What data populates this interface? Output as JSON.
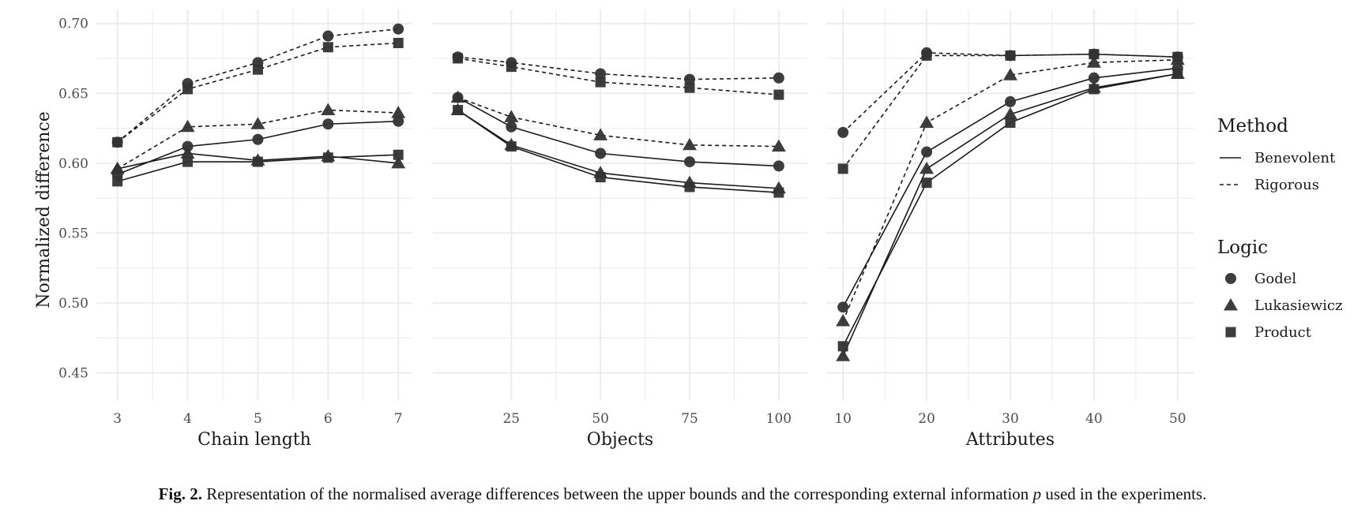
{
  "chart_data": {
    "type": "line",
    "ylabel": "Normalized difference",
    "ylim": [
      0.43,
      0.71
    ],
    "yticks": [
      0.45,
      0.5,
      0.55,
      0.6,
      0.65,
      0.7
    ],
    "ytick_labels": [
      "0.45",
      "0.50",
      "0.55",
      "0.60",
      "0.65",
      "0.70"
    ],
    "grid": true,
    "panels": [
      {
        "xlabel": "Chain length",
        "xlim": [
          2.7,
          7.2
        ],
        "xticks": [
          3,
          4,
          5,
          6,
          7
        ],
        "xtick_labels": [
          "3",
          "4",
          "5",
          "6",
          "7"
        ],
        "x": [
          3,
          4,
          5,
          6,
          7
        ],
        "series": [
          {
            "name": "Benevolent / Godel",
            "method": "Benevolent",
            "logic": "Godel",
            "values": [
              0.592,
              0.612,
              0.617,
              0.628,
              0.63
            ]
          },
          {
            "name": "Benevolent / Lukasiewicz",
            "method": "Benevolent",
            "logic": "Lukasiewicz",
            "values": [
              0.596,
              0.607,
              0.602,
              0.605,
              0.6
            ]
          },
          {
            "name": "Benevolent / Product",
            "method": "Benevolent",
            "logic": "Product",
            "values": [
              0.587,
              0.601,
              0.601,
              0.604,
              0.606
            ]
          },
          {
            "name": "Rigorous / Godel",
            "method": "Rigorous",
            "logic": "Godel",
            "values": [
              0.615,
              0.657,
              0.672,
              0.691,
              0.696
            ]
          },
          {
            "name": "Rigorous / Lukasiewicz",
            "method": "Rigorous",
            "logic": "Lukasiewicz",
            "values": [
              0.596,
              0.626,
              0.628,
              0.638,
              0.636
            ]
          },
          {
            "name": "Rigorous / Product",
            "method": "Rigorous",
            "logic": "Product",
            "values": [
              0.615,
              0.653,
              0.667,
              0.683,
              0.686
            ]
          }
        ]
      },
      {
        "xlabel": "Objects",
        "xlim": [
          3,
          108
        ],
        "xticks": [
          25,
          50,
          75,
          100
        ],
        "xtick_labels": [
          "25",
          "50",
          "75",
          "100"
        ],
        "x": [
          10,
          25,
          50,
          75,
          100
        ],
        "series": [
          {
            "name": "Benevolent / Godel",
            "method": "Benevolent",
            "logic": "Godel",
            "values": [
              0.647,
              0.626,
              0.607,
              0.601,
              0.598
            ]
          },
          {
            "name": "Benevolent / Lukasiewicz",
            "method": "Benevolent",
            "logic": "Lukasiewicz",
            "values": [
              0.638,
              0.613,
              0.593,
              0.586,
              0.582
            ]
          },
          {
            "name": "Benevolent / Product",
            "method": "Benevolent",
            "logic": "Product",
            "values": [
              0.638,
              0.612,
              0.59,
              0.583,
              0.579
            ]
          },
          {
            "name": "Rigorous / Godel",
            "method": "Rigorous",
            "logic": "Godel",
            "values": [
              0.676,
              0.672,
              0.664,
              0.66,
              0.661
            ]
          },
          {
            "name": "Rigorous / Lukasiewicz",
            "method": "Rigorous",
            "logic": "Lukasiewicz",
            "values": [
              0.647,
              0.633,
              0.62,
              0.613,
              0.612
            ]
          },
          {
            "name": "Rigorous / Product",
            "method": "Rigorous",
            "logic": "Product",
            "values": [
              0.675,
              0.669,
              0.658,
              0.654,
              0.649
            ]
          }
        ]
      },
      {
        "xlabel": "Attributes",
        "xlim": [
          8,
          52
        ],
        "xticks": [
          10,
          20,
          30,
          40,
          50
        ],
        "xtick_labels": [
          "10",
          "20",
          "30",
          "40",
          "50"
        ],
        "x": [
          10,
          20,
          30,
          40,
          50
        ],
        "series": [
          {
            "name": "Benevolent / Godel",
            "method": "Benevolent",
            "logic": "Godel",
            "values": [
              0.497,
              0.608,
              0.644,
              0.661,
              0.668
            ]
          },
          {
            "name": "Benevolent / Lukasiewicz",
            "method": "Benevolent",
            "logic": "Lukasiewicz",
            "values": [
              0.462,
              0.596,
              0.635,
              0.654,
              0.664
            ]
          },
          {
            "name": "Benevolent / Product",
            "method": "Benevolent",
            "logic": "Product",
            "values": [
              0.469,
              0.586,
              0.629,
              0.653,
              0.664
            ]
          },
          {
            "name": "Rigorous / Godel",
            "method": "Rigorous",
            "logic": "Godel",
            "values": [
              0.622,
              0.679,
              0.677,
              0.678,
              0.676
            ]
          },
          {
            "name": "Rigorous / Lukasiewicz",
            "method": "Rigorous",
            "logic": "Lukasiewicz",
            "values": [
              0.487,
              0.629,
              0.663,
              0.672,
              0.674
            ]
          },
          {
            "name": "Rigorous / Product",
            "method": "Rigorous",
            "logic": "Product",
            "values": [
              0.596,
              0.677,
              0.677,
              0.678,
              0.676
            ]
          }
        ]
      }
    ],
    "legend": {
      "placement": "right",
      "method_title": "Method",
      "method_items": [
        "Benevolent",
        "Rigorous"
      ],
      "logic_title": "Logic",
      "logic_items": [
        "Godel",
        "Lukasiewicz",
        "Product"
      ]
    },
    "colors": {
      "marks": "#333333",
      "grid": "#ebebeb",
      "axis_text": "#4d4d4d"
    }
  },
  "caption": {
    "label": "Fig. 2.",
    "text_before": "Representation of the normalised average differences between the upper bounds and the corresponding external information",
    "variable": "p",
    "text_after": "used in the experiments."
  }
}
